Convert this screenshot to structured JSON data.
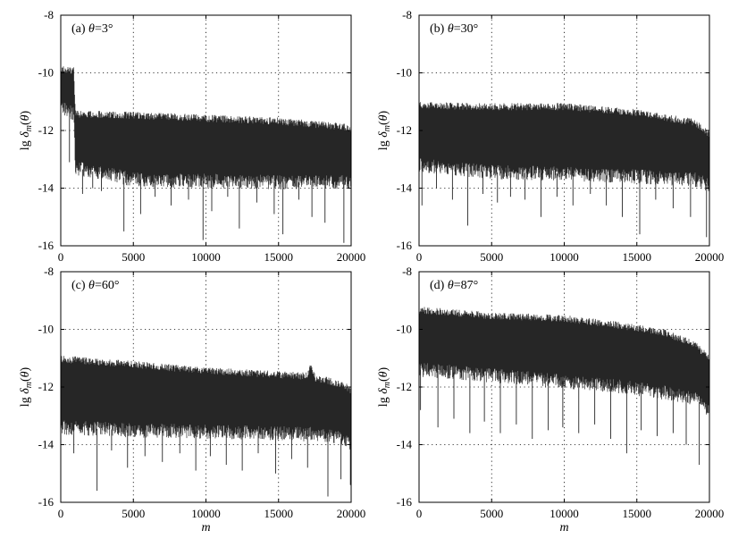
{
  "chart_data": [
    {
      "type": "line",
      "title": "(a) θ=3°",
      "title_prefix": "(a) ",
      "theta_value": "=3°",
      "xlabel": "",
      "ylabel": "lg δm(θ)",
      "xlim": [
        0,
        20000
      ],
      "ylim": [
        -16,
        -8
      ],
      "xticks": [
        "0",
        "5000",
        "10000",
        "15000",
        "20000"
      ],
      "yticks": [
        "-8",
        "-10",
        "-12",
        "-14",
        "-16"
      ],
      "grid": true,
      "series_color": "#262626",
      "envelope": [
        {
          "x": 0,
          "top": -9.75,
          "bottom": -11.2
        },
        {
          "x": 900,
          "top": -9.8,
          "bottom": -11.4
        },
        {
          "x": 1000,
          "top": -11.3,
          "bottom": -13.3
        },
        {
          "x": 5000,
          "top": -11.35,
          "bottom": -13.7
        },
        {
          "x": 10000,
          "top": -11.45,
          "bottom": -13.75
        },
        {
          "x": 15000,
          "top": -11.55,
          "bottom": -13.8
        },
        {
          "x": 19500,
          "top": -11.75,
          "bottom": -13.8
        },
        {
          "x": 20000,
          "top": -11.9,
          "bottom": -13.9
        }
      ],
      "spikes": [
        {
          "x": 600,
          "y": -13.1
        },
        {
          "x": 1500,
          "y": -14.2
        },
        {
          "x": 2200,
          "y": -14.0
        },
        {
          "x": 2800,
          "y": -14.1
        },
        {
          "x": 4350,
          "y": -15.5
        },
        {
          "x": 5500,
          "y": -14.9
        },
        {
          "x": 6500,
          "y": -14.3
        },
        {
          "x": 7600,
          "y": -14.6
        },
        {
          "x": 8800,
          "y": -14.4
        },
        {
          "x": 9800,
          "y": -15.8
        },
        {
          "x": 10400,
          "y": -14.8
        },
        {
          "x": 11500,
          "y": -14.3
        },
        {
          "x": 12300,
          "y": -15.4
        },
        {
          "x": 13500,
          "y": -14.5
        },
        {
          "x": 14700,
          "y": -14.9
        },
        {
          "x": 15300,
          "y": -15.6
        },
        {
          "x": 16400,
          "y": -14.4
        },
        {
          "x": 17300,
          "y": -15.0
        },
        {
          "x": 18200,
          "y": -15.2
        },
        {
          "x": 19500,
          "y": -15.9
        }
      ]
    },
    {
      "type": "line",
      "title": "(b) θ=30°",
      "title_prefix": "(b) ",
      "theta_value": "=30°",
      "xlabel": "",
      "ylabel": "lg δm(θ)",
      "xlim": [
        0,
        20000
      ],
      "ylim": [
        -16,
        -8
      ],
      "xticks": [
        "0",
        "5000",
        "10000",
        "15000",
        "20000"
      ],
      "yticks": [
        "-8",
        "-10",
        "-12",
        "-14",
        "-16"
      ],
      "grid": true,
      "series_color": "#262626",
      "envelope": [
        {
          "x": 0,
          "top": -11.0,
          "bottom": -13.2
        },
        {
          "x": 5000,
          "top": -11.05,
          "bottom": -13.45
        },
        {
          "x": 10000,
          "top": -11.05,
          "bottom": -13.5
        },
        {
          "x": 15000,
          "top": -11.25,
          "bottom": -13.6
        },
        {
          "x": 19000,
          "top": -11.6,
          "bottom": -13.7
        },
        {
          "x": 20000,
          "top": -12.0,
          "bottom": -13.9
        }
      ],
      "spikes": [
        {
          "x": 200,
          "y": -14.6
        },
        {
          "x": 1200,
          "y": -14.0
        },
        {
          "x": 2300,
          "y": -14.4
        },
        {
          "x": 3350,
          "y": -15.3
        },
        {
          "x": 4400,
          "y": -14.2
        },
        {
          "x": 5400,
          "y": -14.5
        },
        {
          "x": 6300,
          "y": -14.3
        },
        {
          "x": 7300,
          "y": -14.4
        },
        {
          "x": 8400,
          "y": -15.0
        },
        {
          "x": 9500,
          "y": -14.3
        },
        {
          "x": 10600,
          "y": -14.6
        },
        {
          "x": 11800,
          "y": -14.2
        },
        {
          "x": 12900,
          "y": -14.6
        },
        {
          "x": 14000,
          "y": -15.0
        },
        {
          "x": 15200,
          "y": -15.6
        },
        {
          "x": 16300,
          "y": -14.4
        },
        {
          "x": 17500,
          "y": -14.7
        },
        {
          "x": 18700,
          "y": -15.0
        },
        {
          "x": 19800,
          "y": -15.7
        }
      ]
    },
    {
      "type": "line",
      "title": "(c) θ=60°",
      "title_prefix": "(c) ",
      "theta_value": "=60°",
      "xlabel": "m",
      "ylabel": "lg δm(θ)",
      "xlim": [
        0,
        20000
      ],
      "ylim": [
        -16,
        -8
      ],
      "xticks": [
        "0",
        "5000",
        "10000",
        "15000",
        "20000"
      ],
      "yticks": [
        "-8",
        "-10",
        "-12",
        "-14",
        "-16"
      ],
      "grid": true,
      "series_color": "#262626",
      "envelope": [
        {
          "x": 0,
          "top": -10.9,
          "bottom": -13.4
        },
        {
          "x": 5000,
          "top": -11.1,
          "bottom": -13.5
        },
        {
          "x": 10000,
          "top": -11.3,
          "bottom": -13.55
        },
        {
          "x": 15000,
          "top": -11.45,
          "bottom": -13.6
        },
        {
          "x": 17000,
          "top": -11.5,
          "bottom": -13.65
        },
        {
          "x": 17200,
          "top": -11.05,
          "bottom": -13.6
        },
        {
          "x": 17500,
          "top": -11.55,
          "bottom": -13.65
        },
        {
          "x": 19500,
          "top": -11.8,
          "bottom": -13.8
        },
        {
          "x": 20000,
          "top": -12.0,
          "bottom": -14.0
        }
      ],
      "spikes": [
        {
          "x": 0,
          "y": -15.2
        },
        {
          "x": 900,
          "y": -14.3
        },
        {
          "x": 2500,
          "y": -15.6
        },
        {
          "x": 3500,
          "y": -14.2
        },
        {
          "x": 4600,
          "y": -14.8
        },
        {
          "x": 5800,
          "y": -14.4
        },
        {
          "x": 7000,
          "y": -14.6
        },
        {
          "x": 8200,
          "y": -14.3
        },
        {
          "x": 9300,
          "y": -14.9
        },
        {
          "x": 10300,
          "y": -14.4
        },
        {
          "x": 11400,
          "y": -14.7
        },
        {
          "x": 12500,
          "y": -14.9
        },
        {
          "x": 13600,
          "y": -14.3
        },
        {
          "x": 14800,
          "y": -15.0
        },
        {
          "x": 15900,
          "y": -14.5
        },
        {
          "x": 17000,
          "y": -14.8
        },
        {
          "x": 18400,
          "y": -15.8
        },
        {
          "x": 19300,
          "y": -15.2
        },
        {
          "x": 19950,
          "y": -15.4
        }
      ]
    },
    {
      "type": "line",
      "title": "(d) θ=87°",
      "title_prefix": "(d) ",
      "theta_value": "=87°",
      "xlabel": "m",
      "ylabel": "lg δm(θ)",
      "xlim": [
        0,
        20000
      ],
      "ylim": [
        -16,
        -8
      ],
      "xticks": [
        "0",
        "5000",
        "10000",
        "15000",
        "20000"
      ],
      "yticks": [
        "-8",
        "-10",
        "-12",
        "-14",
        "-16"
      ],
      "grid": true,
      "series_color": "#262626",
      "envelope": [
        {
          "x": 0,
          "top": -9.2,
          "bottom": -11.4
        },
        {
          "x": 5000,
          "top": -9.4,
          "bottom": -11.6
        },
        {
          "x": 10000,
          "top": -9.5,
          "bottom": -11.8
        },
        {
          "x": 14000,
          "top": -9.75,
          "bottom": -12.0
        },
        {
          "x": 17000,
          "top": -10.0,
          "bottom": -12.2
        },
        {
          "x": 19000,
          "top": -10.4,
          "bottom": -12.4
        },
        {
          "x": 20000,
          "top": -10.9,
          "bottom": -12.8
        }
      ],
      "spikes": [
        {
          "x": 100,
          "y": -12.8
        },
        {
          "x": 1300,
          "y": -13.4
        },
        {
          "x": 2400,
          "y": -13.1
        },
        {
          "x": 3500,
          "y": -13.6
        },
        {
          "x": 4500,
          "y": -13.2
        },
        {
          "x": 5600,
          "y": -13.6
        },
        {
          "x": 6700,
          "y": -13.3
        },
        {
          "x": 7800,
          "y": -13.8
        },
        {
          "x": 8900,
          "y": -13.5
        },
        {
          "x": 9900,
          "y": -13.4
        },
        {
          "x": 11000,
          "y": -13.6
        },
        {
          "x": 12100,
          "y": -13.3
        },
        {
          "x": 13200,
          "y": -13.8
        },
        {
          "x": 14300,
          "y": -14.3
        },
        {
          "x": 15300,
          "y": -13.5
        },
        {
          "x": 16400,
          "y": -13.7
        },
        {
          "x": 17500,
          "y": -13.6
        },
        {
          "x": 18400,
          "y": -14.0
        },
        {
          "x": 19300,
          "y": -14.7
        },
        {
          "x": 20000,
          "y": -13.8
        }
      ]
    }
  ]
}
